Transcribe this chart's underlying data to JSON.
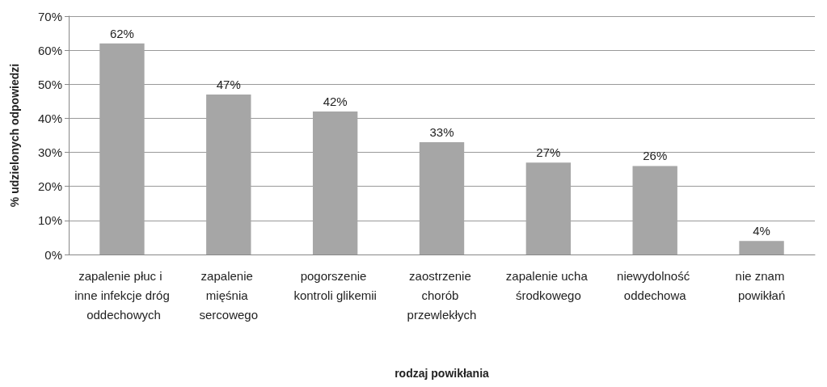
{
  "chart_data": {
    "type": "bar",
    "xlabel": "rodzaj powikłania",
    "ylabel": "% udzielonych odpowiedzi",
    "categories": [
      "zapalenie płuc i inne infekcje dróg oddechowych",
      "zapalenie mięśnia sercowego",
      "pogorszenie kontroli glikemii",
      "zaostrzenie chorób przewlekłych",
      "zapalenie ucha środkowego",
      "niewydolność oddechowa",
      "nie znam powikłań"
    ],
    "values": [
      62,
      47,
      42,
      33,
      27,
      26,
      4
    ],
    "value_labels": [
      "62%",
      "47%",
      "42%",
      "33%",
      "27%",
      "26%",
      "4%"
    ],
    "color": "#a6a6a6",
    "ylim": [
      0,
      70
    ],
    "yticks": [
      {
        "value": 0,
        "label": "0%"
      },
      {
        "value": 10,
        "label": "10%"
      },
      {
        "value": 20,
        "label": "20%"
      },
      {
        "value": 30,
        "label": "30%"
      },
      {
        "value": 40,
        "label": "40%"
      },
      {
        "value": 50,
        "label": "50%"
      },
      {
        "value": 60,
        "label": "60%"
      },
      {
        "value": 70,
        "label": "70%"
      }
    ],
    "grid": "y"
  }
}
